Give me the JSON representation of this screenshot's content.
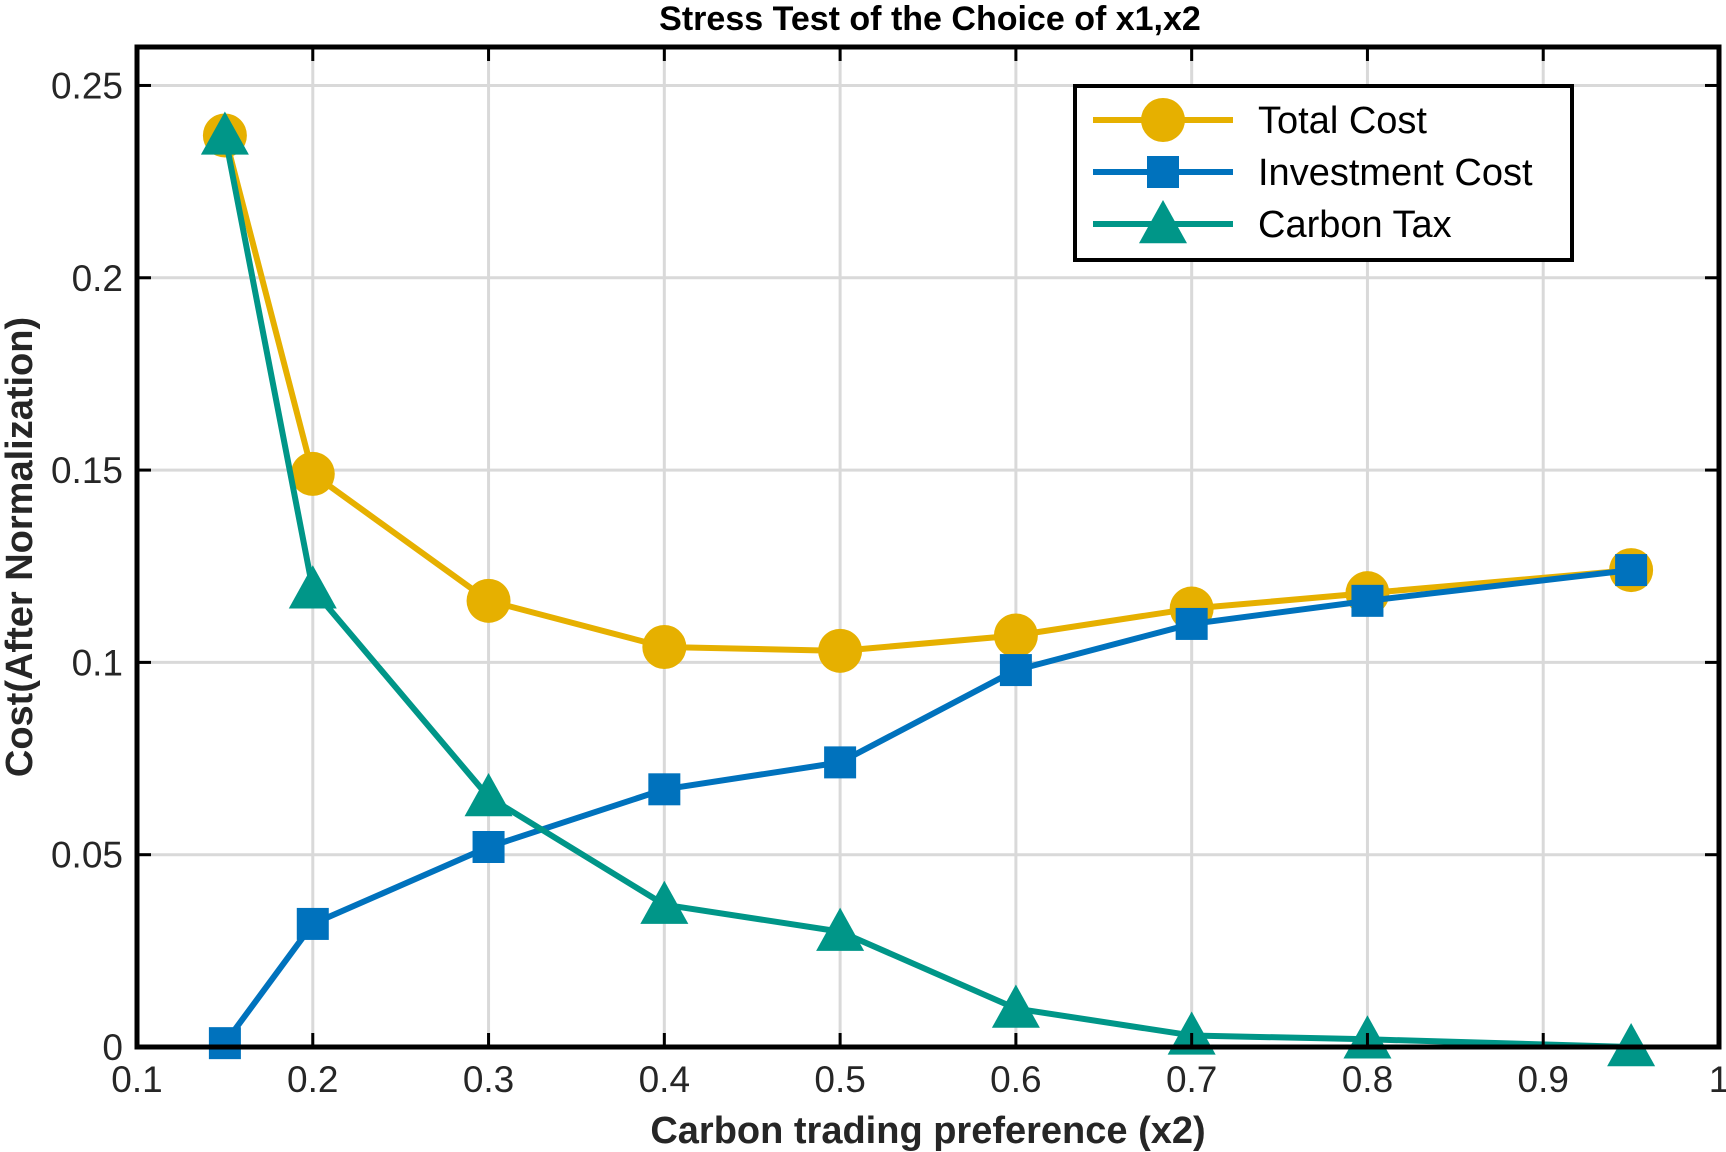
{
  "chart_data": {
    "type": "line",
    "title": "Stress Test of  the Choice of x1,x2",
    "xlabel": "Carbon trading preference (x2)",
    "ylabel": "Cost(After Normalization)",
    "xlim": [
      0.1,
      1
    ],
    "ylim": [
      0,
      0.26
    ],
    "xticks": [
      "0.1",
      "0.2",
      "0.3",
      "0.4",
      "0.5",
      "0.6",
      "0.7",
      "0.8",
      "0.9",
      "1"
    ],
    "xtick_values": [
      0.1,
      0.2,
      0.3,
      0.4,
      0.5,
      0.6,
      0.7,
      0.8,
      0.9,
      1.0
    ],
    "yticks": [
      "0",
      "0.05",
      "0.1",
      "0.15",
      "0.2",
      "0.25"
    ],
    "ytick_values": [
      0,
      0.05,
      0.1,
      0.15,
      0.2,
      0.25
    ],
    "grid": true,
    "legend_position": "top-right",
    "x": [
      0.15,
      0.2,
      0.3,
      0.4,
      0.5,
      0.6,
      0.7,
      0.8,
      0.95
    ],
    "series": [
      {
        "name": "Total Cost",
        "color": "#E6B000",
        "marker": "circle",
        "values": [
          0.237,
          0.149,
          0.116,
          0.104,
          0.103,
          0.107,
          0.114,
          0.118,
          0.124
        ]
      },
      {
        "name": "Investment Cost",
        "color": "#0072BD",
        "marker": "square",
        "values": [
          0.001,
          0.032,
          0.052,
          0.067,
          0.074,
          0.098,
          0.11,
          0.116,
          0.124
        ]
      },
      {
        "name": "Carbon Tax",
        "color": "#009688",
        "marker": "triangle",
        "values": [
          0.237,
          0.119,
          0.065,
          0.037,
          0.03,
          0.01,
          0.003,
          0.002,
          0.0
        ]
      }
    ]
  }
}
